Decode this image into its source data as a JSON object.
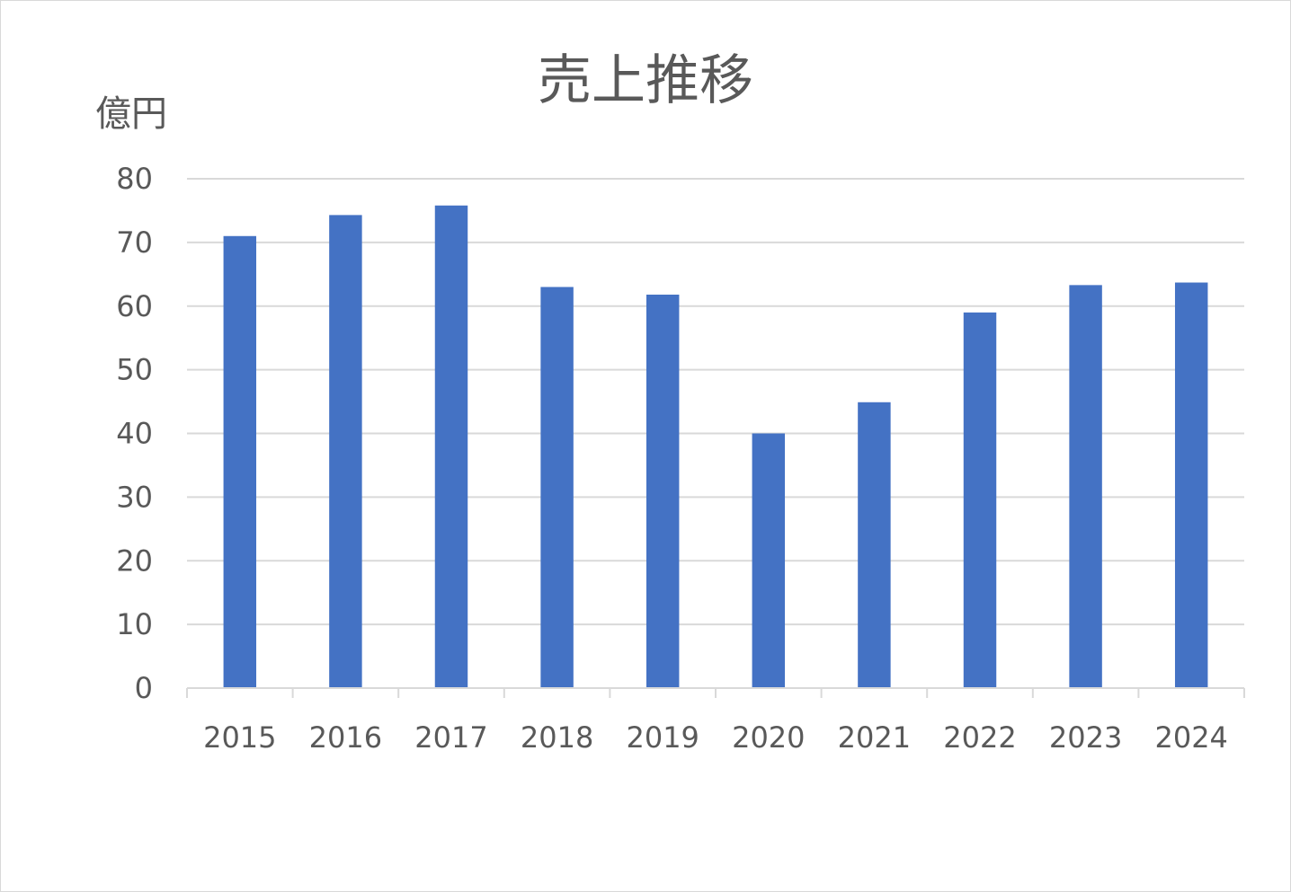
{
  "chart_data": {
    "type": "bar",
    "title": "売上推移",
    "unit_label": "億円",
    "categories": [
      "2015",
      "2016",
      "2017",
      "2018",
      "2019",
      "2020",
      "2021",
      "2022",
      "2023",
      "2024"
    ],
    "values": [
      71,
      74.3,
      75.8,
      63,
      61.8,
      40,
      44.9,
      59,
      63.3,
      63.7
    ],
    "ylim": [
      0,
      80
    ],
    "yticks": [
      0,
      10,
      20,
      30,
      40,
      50,
      60,
      70,
      80
    ],
    "grid": true,
    "legend": "none",
    "colors": {
      "bar": "#4472c4",
      "grid": "#d9d9d9",
      "text": "#595959"
    }
  }
}
